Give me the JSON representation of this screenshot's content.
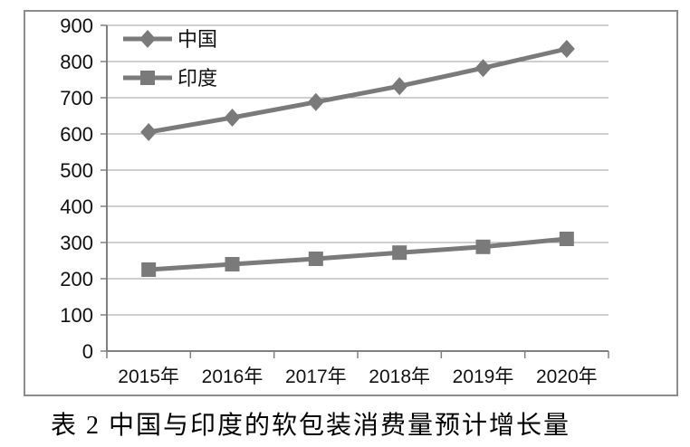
{
  "chart_data": {
    "type": "line",
    "title": "表 2  中国与印度的软包装消费量预计增长量",
    "categories": [
      "2015年",
      "2016年",
      "2017年",
      "2018年",
      "2019年",
      "2020年"
    ],
    "series": [
      {
        "name": "中国",
        "marker": "diamond",
        "values": [
          605,
          645,
          688,
          732,
          782,
          835
        ]
      },
      {
        "name": "印度",
        "marker": "square",
        "values": [
          225,
          240,
          255,
          272,
          288,
          310
        ]
      }
    ],
    "xlabel": "",
    "ylabel": "",
    "ylim": [
      0,
      900
    ],
    "yticks": [
      0,
      100,
      200,
      300,
      400,
      500,
      600,
      700,
      800,
      900
    ],
    "grid": true,
    "legend_position": "top-left",
    "colors": {
      "series": "#7a7a7a",
      "grid": "#9e9e9e",
      "axis": "#808080",
      "border": "#8c8c8c",
      "text": "#111111"
    }
  }
}
